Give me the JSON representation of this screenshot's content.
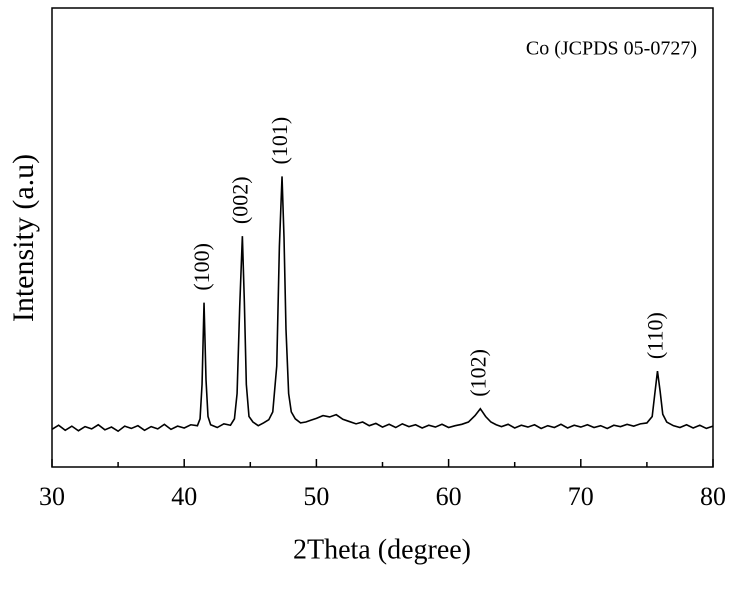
{
  "chart_data": {
    "type": "line",
    "title": "Co (JCPDS 05-0727)",
    "x_label": "2Theta (degree)",
    "y_label": "Intensity (a.u)",
    "color": "#000000",
    "xlim": [
      30,
      80
    ],
    "xticks": [
      30,
      40,
      50,
      60,
      70,
      80
    ],
    "xminorticks": [
      35,
      45,
      55,
      65,
      75
    ],
    "ylim": [
      0,
      100
    ],
    "x": [
      30,
      30.5,
      31,
      31.5,
      32,
      32.5,
      33,
      33.5,
      34,
      34.5,
      35,
      35.5,
      36,
      36.5,
      37,
      37.5,
      38,
      38.5,
      39,
      39.5,
      40,
      40.5,
      41,
      41.2,
      41.35,
      41.5,
      41.65,
      41.8,
      42,
      42.5,
      43,
      43.5,
      43.8,
      44.0,
      44.2,
      44.4,
      44.55,
      44.7,
      44.9,
      45.2,
      45.6,
      46,
      46.4,
      46.7,
      47.0,
      47.2,
      47.4,
      47.55,
      47.7,
      47.9,
      48.1,
      48.4,
      48.8,
      49.2,
      49.6,
      50,
      50.5,
      51,
      51.5,
      52,
      52.5,
      53,
      53.5,
      54,
      54.5,
      55,
      55.5,
      56,
      56.5,
      57,
      57.5,
      58,
      58.5,
      59,
      59.5,
      60,
      60.5,
      61,
      61.5,
      62,
      62.4,
      62.8,
      63.2,
      63.6,
      64,
      64.5,
      65,
      65.5,
      66,
      66.5,
      67,
      67.5,
      68,
      68.5,
      69,
      69.5,
      70,
      70.5,
      71,
      71.5,
      72,
      72.5,
      73,
      73.5,
      74,
      74.5,
      75,
      75.4,
      75.6,
      75.8,
      76.0,
      76.2,
      76.5,
      77,
      77.5,
      78,
      78.5,
      79,
      79.5,
      80
    ],
    "values": [
      8.2,
      9.1,
      8.0,
      8.9,
      7.9,
      8.8,
      8.3,
      9.2,
      8.1,
      8.7,
      7.8,
      8.9,
      8.4,
      9.0,
      8.0,
      8.8,
      8.3,
      9.3,
      8.2,
      8.9,
      8.5,
      9.2,
      9.0,
      10.5,
      18,
      35.8,
      19,
      11,
      9.2,
      8.6,
      9.4,
      9.1,
      10.5,
      16,
      35,
      50.3,
      36,
      18,
      11,
      9.8,
      9.0,
      9.6,
      10.3,
      12,
      22,
      48,
      63.3,
      50,
      30,
      16,
      12,
      10.5,
      9.6,
      9.8,
      10.2,
      10.6,
      11.2,
      10.9,
      11.4,
      10.4,
      9.9,
      9.4,
      9.8,
      9.0,
      9.5,
      8.7,
      9.3,
      8.6,
      9.4,
      8.8,
      9.2,
      8.5,
      9.1,
      8.7,
      9.3,
      8.6,
      9.0,
      9.3,
      9.8,
      11.2,
      12.7,
      11.0,
      9.8,
      9.2,
      8.8,
      9.3,
      8.5,
      9.1,
      8.7,
      9.2,
      8.4,
      9.0,
      8.6,
      9.3,
      8.5,
      9.1,
      8.7,
      9.2,
      8.6,
      9.0,
      8.4,
      9.1,
      8.8,
      9.3,
      8.9,
      9.4,
      9.6,
      11,
      16,
      20.9,
      16.5,
      11.5,
      9.8,
      9.0,
      8.6,
      9.2,
      8.5,
      9.1,
      8.4,
      8.9
    ],
    "annotations": [
      {
        "text": "(100)",
        "x": 41.5
      },
      {
        "text": "(002)",
        "x": 44.4
      },
      {
        "text": "(101)",
        "x": 47.4
      },
      {
        "text": "(102)",
        "x": 62.4
      },
      {
        "text": "(110)",
        "x": 75.8
      }
    ]
  }
}
